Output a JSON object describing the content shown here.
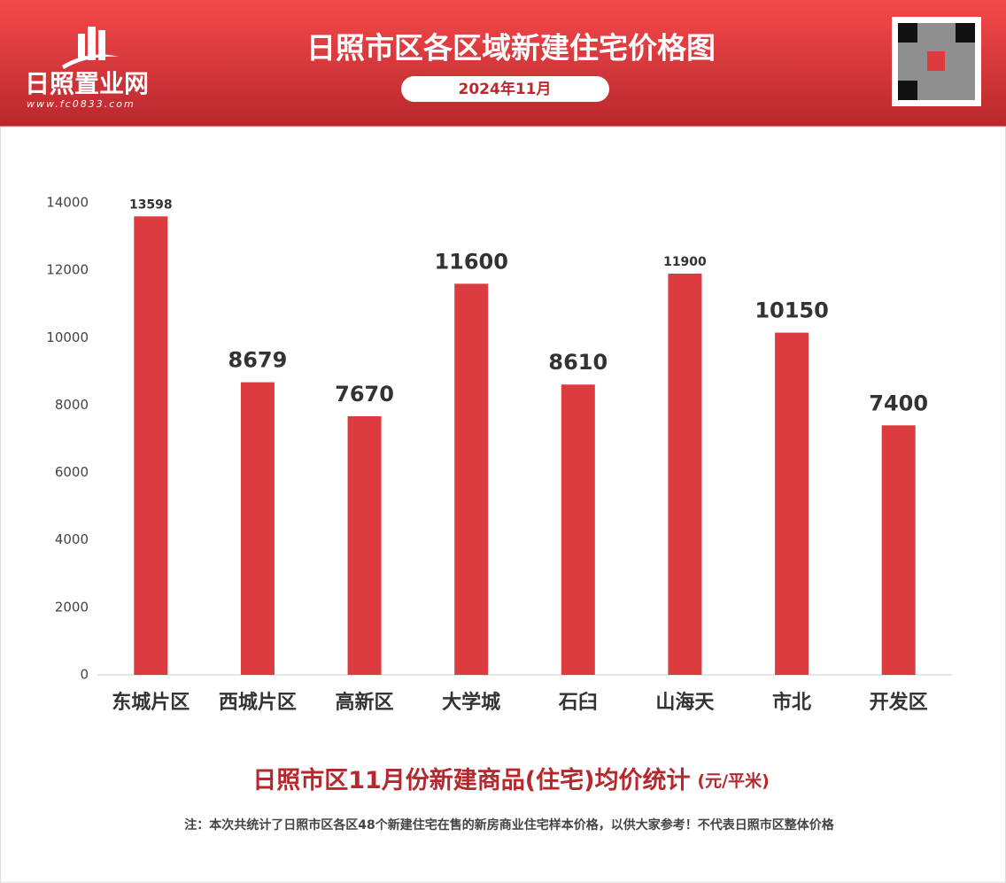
{
  "header": {
    "logo_name": "日照置业网",
    "logo_url": "www.fc0833.com",
    "title": "日照市区各区域新建住宅价格图",
    "date": "2024年11月"
  },
  "chart_data": {
    "type": "bar",
    "title": "日照市区11月份新建商品(住宅)均价统计",
    "unit": "(元/平米)",
    "categories": [
      "东城片区",
      "西城片区",
      "高新区",
      "大学城",
      "石臼",
      "山海天",
      "市北",
      "开发区"
    ],
    "values": [
      13598,
      8679,
      7670,
      11600,
      8610,
      11900,
      10150,
      7400
    ],
    "color": "#dc3b3f",
    "ylim": [
      0,
      14000
    ],
    "yticks": [
      0,
      2000,
      4000,
      6000,
      8000,
      10000,
      12000,
      14000
    ],
    "grid": false
  },
  "footer": {
    "note": "注：本次共统计了日照市区各区48个新建住宅在售的新房商业住宅样本价格，以供大家参考！不代表日照市区整体价格"
  }
}
